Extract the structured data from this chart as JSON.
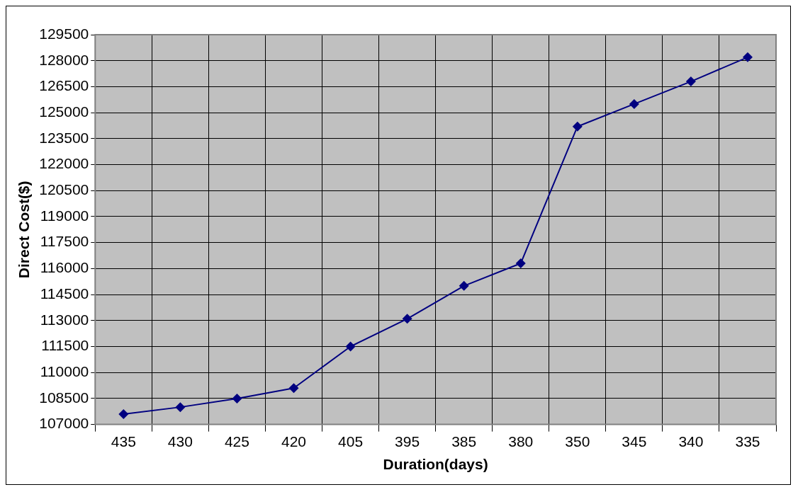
{
  "chart_data": {
    "type": "line",
    "xlabel": "Duration(days)",
    "ylabel": "Direct Cost($)",
    "categories": [
      "435",
      "430",
      "425",
      "420",
      "405",
      "395",
      "385",
      "380",
      "350",
      "345",
      "340",
      "335"
    ],
    "series": [
      {
        "color": "#000080",
        "values": [
          107600,
          108000,
          108500,
          109100,
          111500,
          113100,
          115000,
          116300,
          124200,
          125500,
          126800,
          128200
        ]
      }
    ],
    "ylim": [
      107000,
      129500
    ],
    "yticks": [
      107000,
      108500,
      110000,
      111500,
      113000,
      114500,
      116000,
      117500,
      119000,
      120500,
      122000,
      123500,
      125000,
      126500,
      128000,
      129500
    ],
    "grid": true,
    "legend": false,
    "marker": "diamond",
    "line_style": "solid"
  }
}
